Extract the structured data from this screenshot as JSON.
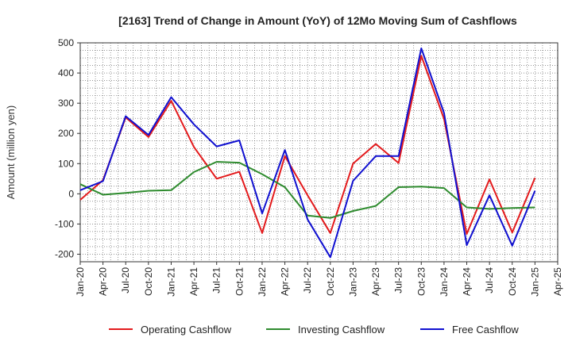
{
  "chart_data": {
    "type": "line",
    "title": "[2163]  Trend of Change in Amount (YoY) of 12Mo Moving Sum of Cashflows",
    "xlabel": "",
    "ylabel": "Amount (million yen)",
    "ylim": [
      -225,
      500
    ],
    "yticks": [
      500,
      400,
      300,
      200,
      100,
      0,
      -100,
      -200
    ],
    "ytick_labels": [
      "500",
      "400",
      "300",
      "200",
      "100",
      "0",
      "-100",
      "-200"
    ],
    "categories": [
      "Jan-20",
      "Apr-20",
      "Jul-20",
      "Oct-20",
      "Jan-21",
      "Apr-21",
      "Jul-21",
      "Oct-21",
      "Jan-22",
      "Apr-22",
      "Jul-22",
      "Oct-22",
      "Jan-23",
      "Apr-23",
      "Jul-23",
      "Oct-23",
      "Jan-24",
      "Apr-24",
      "Jul-24",
      "Oct-24",
      "Jan-25",
      "Apr-25"
    ],
    "grid": true,
    "legend_position": "bottom",
    "series": [
      {
        "name": "Operating Cashflow",
        "color": "#e31a1c",
        "values": [
          -20,
          45,
          253,
          188,
          308,
          155,
          50,
          73,
          -130,
          125,
          -5,
          -130,
          100,
          165,
          102,
          457,
          248,
          -133,
          48,
          -128,
          53,
          null
        ]
      },
      {
        "name": "Investing Cashflow",
        "color": "#2e8b2e",
        "values": [
          32,
          -3,
          3,
          10,
          12,
          72,
          106,
          103,
          65,
          22,
          -72,
          -80,
          -57,
          -40,
          22,
          24,
          19,
          -45,
          -50,
          -47,
          -45,
          null
        ]
      },
      {
        "name": "Free Cashflow",
        "color": "#1010d0",
        "values": [
          12,
          42,
          257,
          195,
          320,
          230,
          157,
          177,
          -65,
          145,
          -85,
          -210,
          43,
          125,
          125,
          482,
          268,
          -170,
          -5,
          -172,
          10,
          null
        ]
      }
    ]
  }
}
